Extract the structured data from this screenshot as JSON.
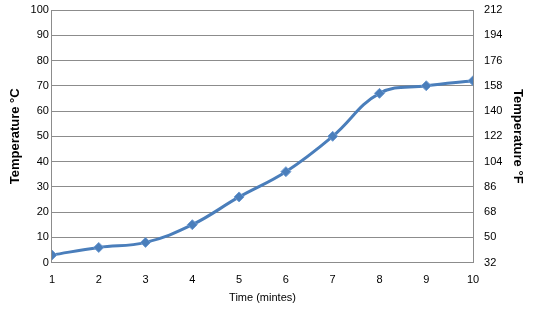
{
  "chart_data": {
    "type": "line",
    "x_label": "Time (mintes)",
    "y_label": "Temperature °C",
    "y2_label": "Temperature °F",
    "x": [
      1,
      2,
      3,
      4,
      5,
      6,
      7,
      8,
      9,
      10
    ],
    "values": [
      3,
      6,
      8,
      15,
      26,
      36,
      50,
      67,
      70,
      72
    ],
    "color": "#4a7ebb",
    "marker": "diamond",
    "line_style": "smooth",
    "xlim": [
      1,
      10
    ],
    "xticks": [
      1,
      2,
      3,
      4,
      5,
      6,
      7,
      8,
      9,
      10
    ],
    "ylim": [
      0,
      100
    ],
    "yticks": [
      0,
      10,
      20,
      30,
      40,
      50,
      60,
      70,
      80,
      90,
      100
    ],
    "y2lim": [
      32,
      212
    ],
    "y2ticks": [
      32,
      50,
      68,
      86,
      104,
      122,
      140,
      158,
      176,
      194,
      212
    ],
    "grid": true
  }
}
